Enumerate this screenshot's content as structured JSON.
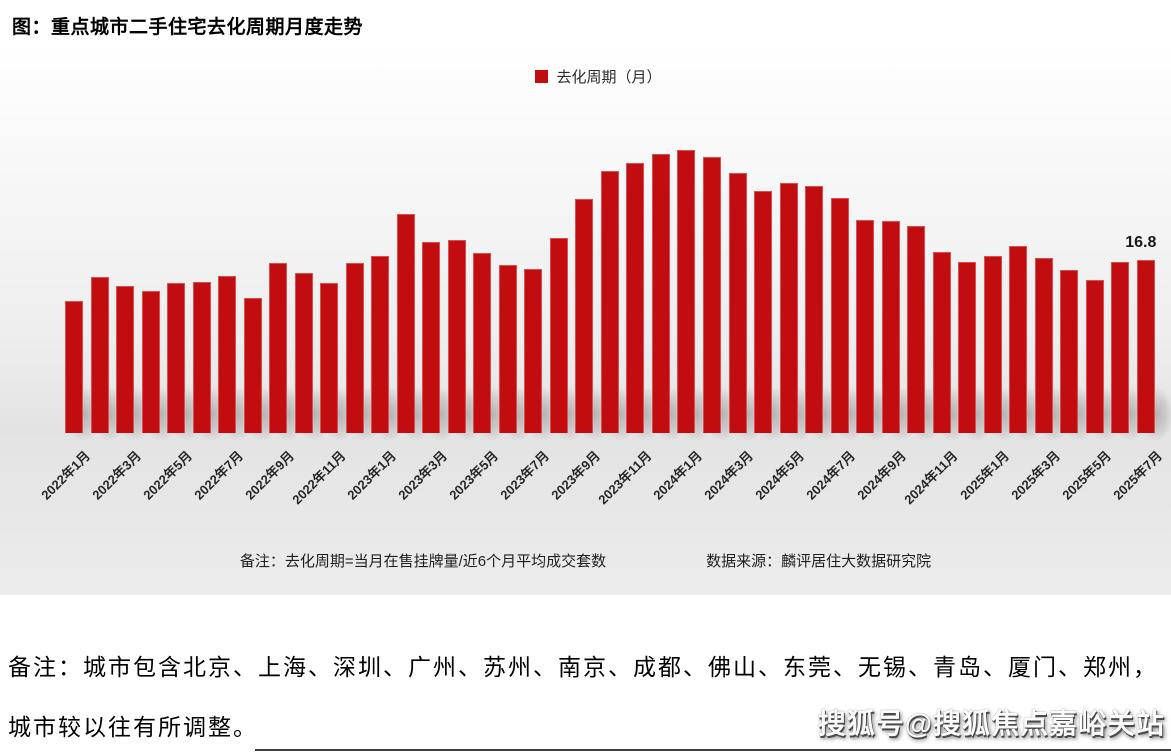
{
  "title": "图：重点城市二手住宅去化周期月度走势",
  "legend": {
    "label": "去化周期（月）",
    "color": "#c10d0f"
  },
  "chart_data": {
    "type": "bar",
    "title": "重点城市二手住宅去化周期月度走势",
    "series_name": "去化周期（月）",
    "x": [
      "2022年1月",
      "2022年2月",
      "2022年3月",
      "2022年4月",
      "2022年5月",
      "2022年6月",
      "2022年7月",
      "2022年8月",
      "2022年9月",
      "2022年10月",
      "2022年11月",
      "2022年12月",
      "2023年1月",
      "2023年2月",
      "2023年3月",
      "2023年4月",
      "2023年5月",
      "2023年6月",
      "2023年7月",
      "2023年8月",
      "2023年9月",
      "2023年10月",
      "2023年11月",
      "2023年12月",
      "2024年1月",
      "2024年2月",
      "2024年3月",
      "2024年4月",
      "2024年5月",
      "2024年6月",
      "2024年7月",
      "2024年8月",
      "2024年9月",
      "2024年10月",
      "2024年11月",
      "2024年12月",
      "2025年1月",
      "2025年2月",
      "2025年3月",
      "2025年4月",
      "2025年5月",
      "2025年6月",
      "2025年7月"
    ],
    "values": [
      12.8,
      15.1,
      14.3,
      13.8,
      14.6,
      14.7,
      15.2,
      13.1,
      16.5,
      15.5,
      14.6,
      16.5,
      17.2,
      21.3,
      18.5,
      18.7,
      17.5,
      16.3,
      15.9,
      18.9,
      22.7,
      25.4,
      26.2,
      27.1,
      27.5,
      26.8,
      25.2,
      23.5,
      24.3,
      24.0,
      22.8,
      20.7,
      20.6,
      20.1,
      17.6,
      16.6,
      17.2,
      18.2,
      17.0,
      15.8,
      14.9,
      16.6,
      16.8
    ],
    "tick_step": 2,
    "bar_color": "#c10d0f",
    "bar_edge_color": "#d9514f",
    "ylim": [
      0,
      29
    ],
    "grid": false,
    "y_axis_visible": false,
    "legend_position": "top-center",
    "annotation": {
      "text": "16.8",
      "x": "2025年7月",
      "value": 16.8
    }
  },
  "footnote": {
    "note": "备注：去化周期=当月在售挂牌量/近6个月平均成交套数",
    "source": "数据来源：麟评居住大数据研究院"
  },
  "remark": {
    "line1": "备注：城市包含北京、上海、深圳、广州、苏州、南京、成都、佛山、东莞、无锡、青岛、厦门、郑州，",
    "line2": "城市较以往有所调整。"
  },
  "watermark": "搜狐号@搜狐焦点嘉峪关站"
}
